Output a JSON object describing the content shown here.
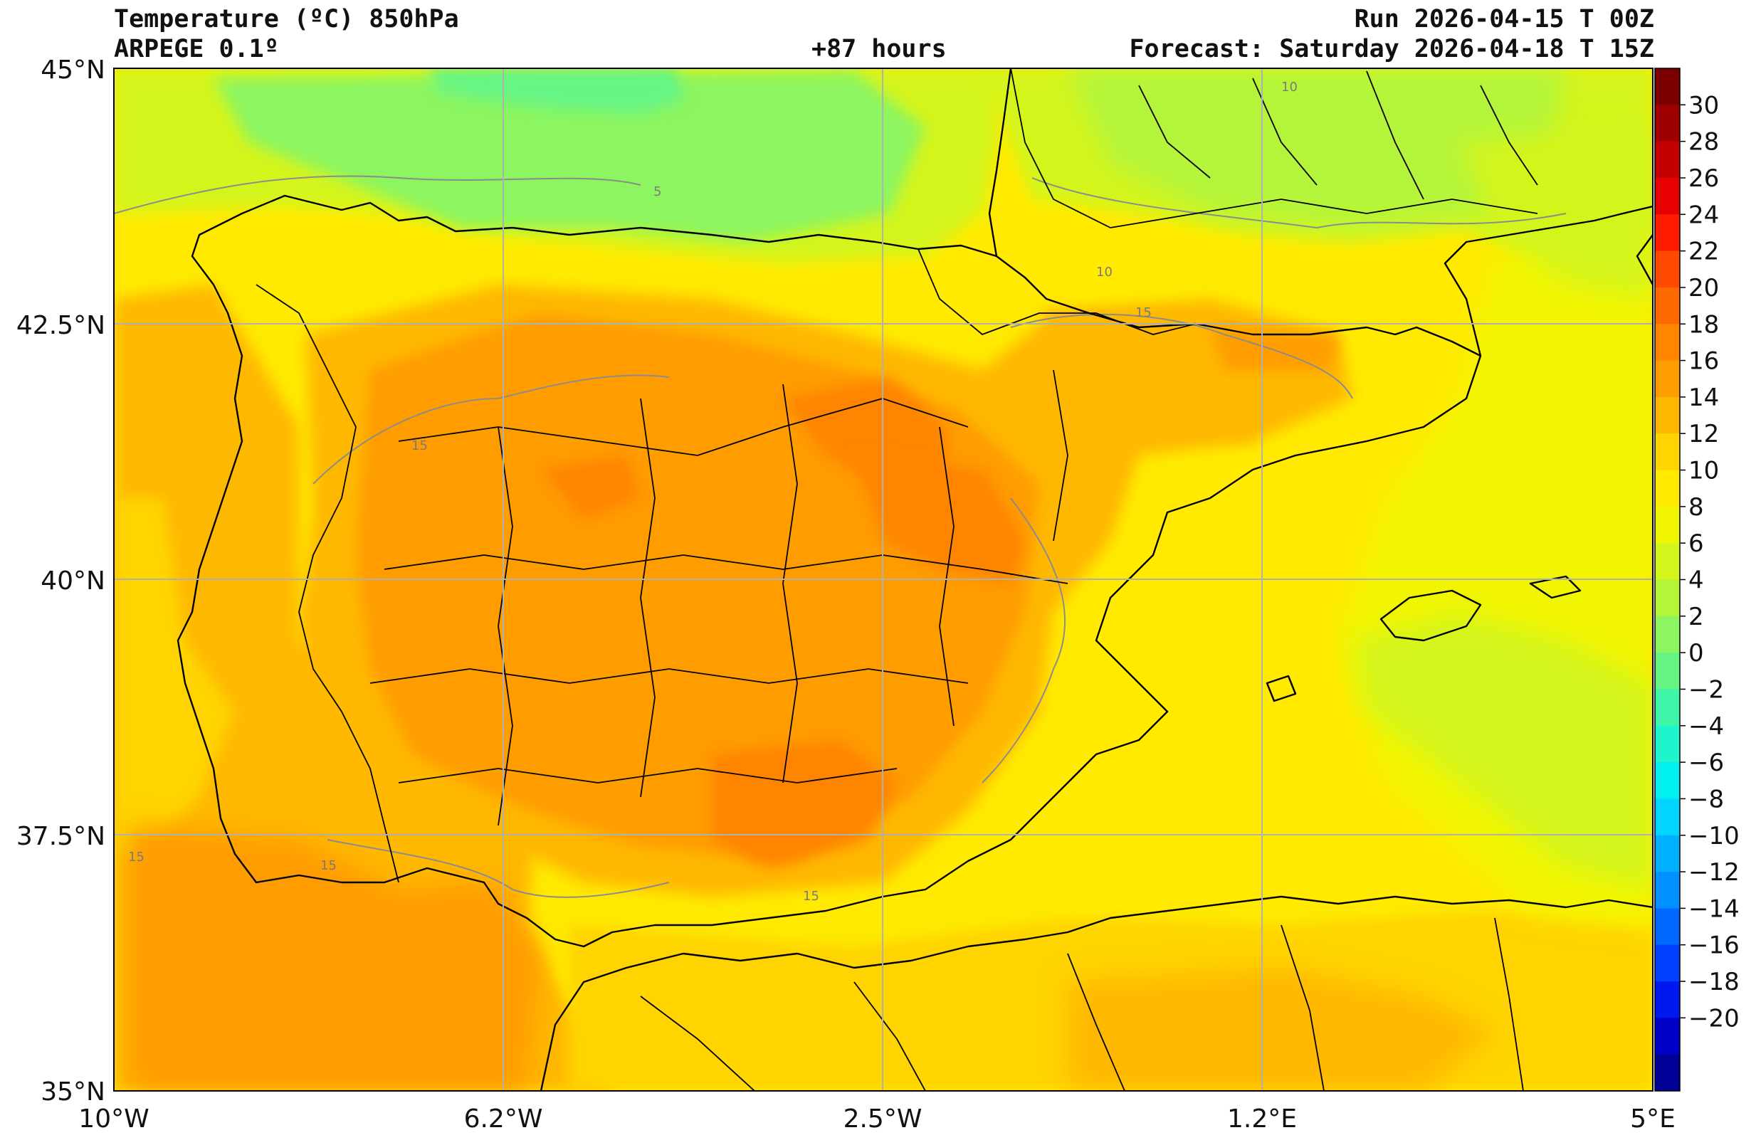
{
  "header": {
    "title_left": "Temperature (ºC) 850hPa",
    "model": "ARPEGE 0.1º",
    "lead_time": "+87 hours",
    "run": "Run 2026-04-15 T 00Z",
    "forecast": "Forecast: Saturday 2026-04-18 T 15Z"
  },
  "axes": {
    "lat_ticks": [
      "45°N",
      "42.5°N",
      "40°N",
      "37.5°N",
      "35°N"
    ],
    "lon_ticks": [
      "10°W",
      "6.2°W",
      "2.5°W",
      "1.2°E",
      "5°E"
    ]
  },
  "colorbar": {
    "labels": [
      "30",
      "28",
      "26",
      "24",
      "22",
      "20",
      "18",
      "16",
      "14",
      "12",
      "10",
      "8",
      "6",
      "4",
      "2",
      "0",
      "−2",
      "−4",
      "−6",
      "−8",
      "−10",
      "−12",
      "−14",
      "−16",
      "−18",
      "−20"
    ],
    "colors": [
      "#7a0000",
      "#9e0000",
      "#c40000",
      "#e60000",
      "#ff1a00",
      "#ff4a00",
      "#ff6a00",
      "#ff8400",
      "#ff9c00",
      "#ffb800",
      "#ffd400",
      "#ffea00",
      "#f2f500",
      "#d4f51c",
      "#b4f53a",
      "#8cf560",
      "#66f585",
      "#3ff5a8",
      "#1ff5cc",
      "#00f0f0",
      "#00d4ff",
      "#00b0ff",
      "#0090ff",
      "#0068ff",
      "#0040ff",
      "#0018f0",
      "#0000c8",
      "#000096"
    ],
    "extended_labels": "uneven"
  },
  "isolines": {
    "labels": [
      "5",
      "10",
      "15"
    ]
  },
  "map": {
    "land_border_color": "#000000",
    "grid_color": "#b0b0b0"
  }
}
